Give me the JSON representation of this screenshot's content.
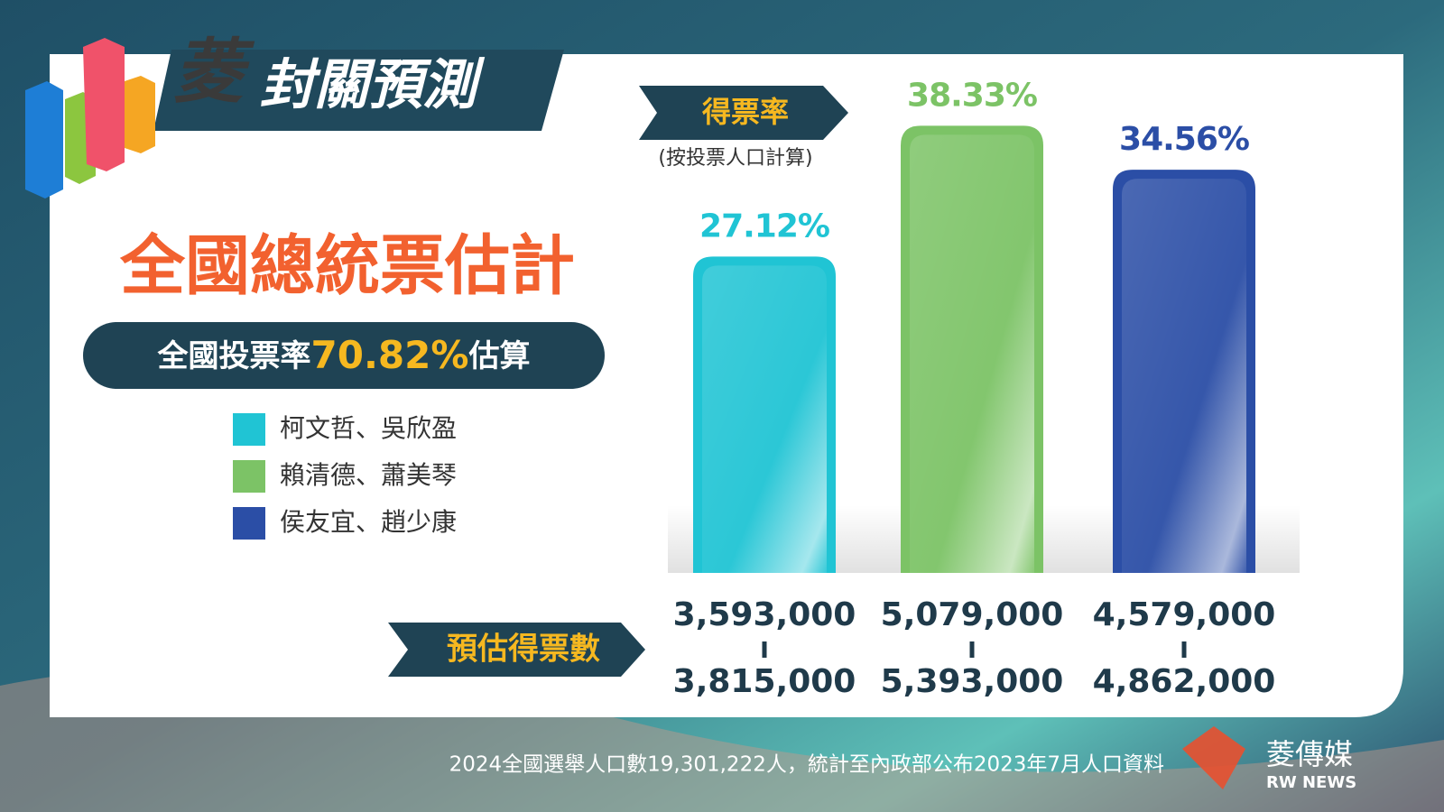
{
  "header": {
    "brand": "菱",
    "title": "封關預測"
  },
  "headline": "全國總統票估計",
  "turnout": {
    "prefix": "全國投票率",
    "value": "70.82%",
    "suffix": "估算"
  },
  "chart_data": {
    "type": "bar",
    "label": "得票率",
    "note": "(按投票人口計算)",
    "categories": [
      "柯文哲、吳欣盈",
      "賴清德、蕭美琴",
      "侯友宜、趙少康"
    ],
    "values": [
      27.12,
      38.33,
      34.56
    ],
    "value_labels": [
      "27.12%",
      "38.33%",
      "34.56%"
    ],
    "colors": [
      "#20c4d4",
      "#7cc366",
      "#2b4ea6"
    ],
    "legend": "left",
    "votes_label": "預估得票數",
    "votes_low": [
      {
        "value": 3593000,
        "label": "3,593,000"
      },
      {
        "value": 5079000,
        "label": "5,079,000"
      },
      {
        "value": 4579000,
        "label": "4,579,000"
      }
    ],
    "votes_high": [
      {
        "value": 3815000,
        "label": "3,815,000"
      },
      {
        "value": 5393000,
        "label": "5,393,000"
      },
      {
        "value": 4862000,
        "label": "4,862,000"
      }
    ]
  },
  "footer": "2024全國選舉人口數19,301,222人，統計至內政部公布2023年7月人口資料",
  "logo": {
    "name": "菱傳媒",
    "sub": "RW NEWS"
  }
}
